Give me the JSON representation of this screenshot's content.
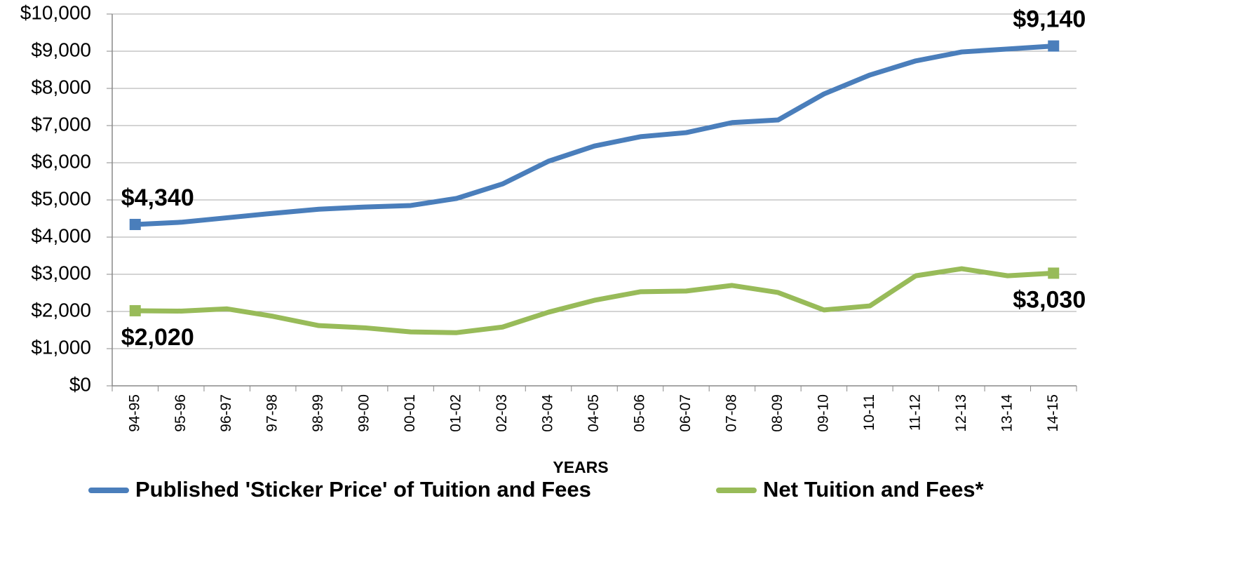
{
  "chart_data": {
    "type": "line",
    "x_label": "YEARS",
    "categories": [
      "94-95",
      "95-96",
      "96-97",
      "97-98",
      "98-99",
      "99-00",
      "00-01",
      "01-02",
      "02-03",
      "03-04",
      "04-05",
      "05-06",
      "06-07",
      "07-08",
      "08-09",
      "09-10",
      "10-11",
      "11-12",
      "12-13",
      "13-14",
      "14-15"
    ],
    "series": [
      {
        "name": "Published 'Sticker Price' of Tuition and Fees",
        "color": "#4a7ebb",
        "values": [
          4340,
          4400,
          4520,
          4640,
          4750,
          4810,
          4850,
          5040,
          5430,
          6040,
          6450,
          6700,
          6810,
          7080,
          7150,
          7850,
          8360,
          8740,
          8980,
          9060,
          9140
        ],
        "value_labels": [
          "$4,340",
          null,
          null,
          null,
          null,
          null,
          null,
          null,
          null,
          null,
          null,
          null,
          null,
          null,
          null,
          null,
          null,
          null,
          null,
          null,
          "$9,140"
        ]
      },
      {
        "name": "Net Tuition and Fees*",
        "color": "#98bb59",
        "values": [
          2020,
          2010,
          2070,
          1870,
          1620,
          1560,
          1450,
          1430,
          1580,
          1980,
          2300,
          2530,
          2550,
          2700,
          2510,
          2040,
          2150,
          2960,
          3150,
          2960,
          3030
        ],
        "value_labels": [
          "$2,020",
          null,
          null,
          null,
          null,
          null,
          null,
          null,
          null,
          null,
          null,
          null,
          null,
          null,
          null,
          null,
          null,
          null,
          null,
          null,
          "$3,030"
        ]
      }
    ],
    "ylim": [
      0,
      10000
    ],
    "yticks": [
      {
        "value": 0,
        "label": "$0"
      },
      {
        "value": 1000,
        "label": "$1,000"
      },
      {
        "value": 2000,
        "label": "$2,000"
      },
      {
        "value": 3000,
        "label": "$3,000"
      },
      {
        "value": 4000,
        "label": "$4,000"
      },
      {
        "value": 5000,
        "label": "$5,000"
      },
      {
        "value": 6000,
        "label": "$6,000"
      },
      {
        "value": 7000,
        "label": "$7,000"
      },
      {
        "value": 8000,
        "label": "$8,000"
      },
      {
        "value": 9000,
        "label": "$9,000"
      },
      {
        "value": 10000,
        "label": "$10,000"
      }
    ],
    "grid": true,
    "legend": "bottom"
  }
}
